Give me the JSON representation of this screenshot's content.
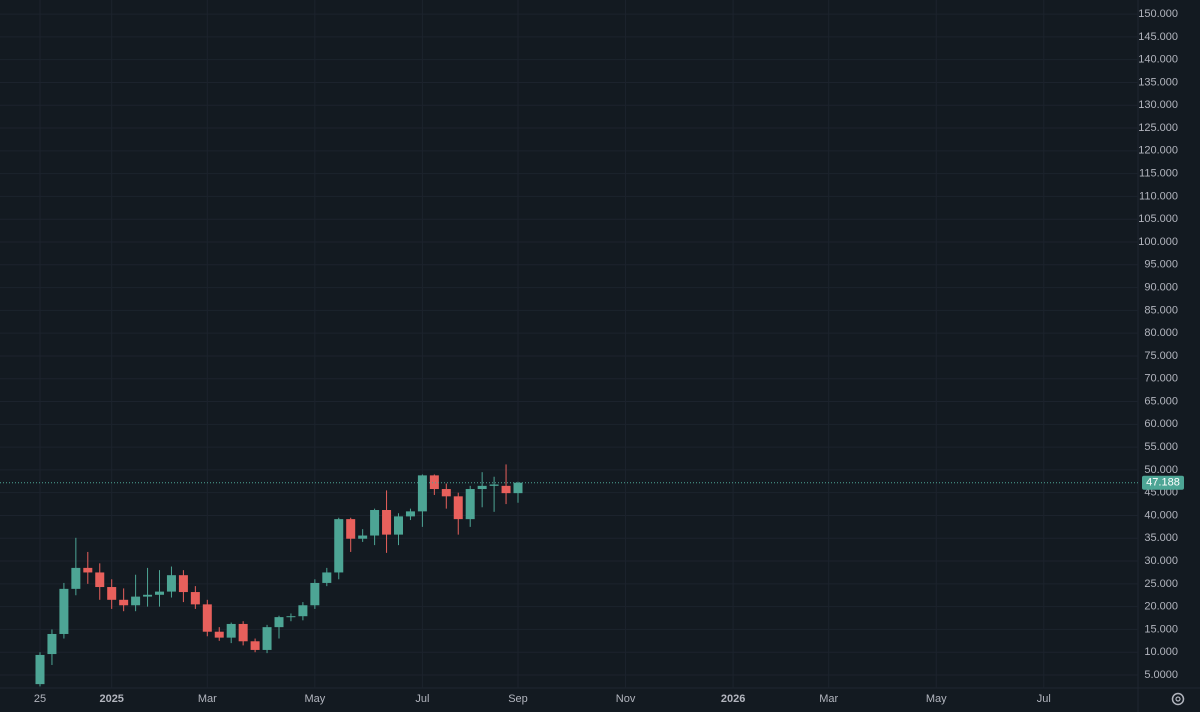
{
  "chart_data": {
    "type": "candlestick",
    "categories": [
      "25",
      null,
      null,
      null,
      null,
      null,
      "2025",
      null,
      null,
      null,
      null,
      null,
      null,
      null,
      "Mar",
      null,
      null,
      null,
      null,
      null,
      null,
      null,
      null,
      "May",
      null,
      null,
      null,
      null,
      null,
      null,
      null,
      null,
      "Jul",
      null,
      null,
      null,
      null,
      null,
      null,
      null,
      "Sep",
      null,
      null,
      null,
      null,
      null,
      null,
      null,
      null,
      "Nov",
      null,
      null,
      null,
      null,
      null,
      null,
      null,
      null,
      "2026",
      null,
      null,
      null,
      null,
      null,
      null,
      null,
      "Mar",
      null,
      null,
      null,
      null,
      null,
      null,
      null,
      null,
      "May",
      null,
      null,
      null,
      null,
      null,
      null,
      null,
      null,
      "Jul",
      null,
      null,
      null,
      null,
      null,
      null
    ],
    "open": [
      3,
      9.6,
      14,
      23.9,
      28.5,
      27.5,
      24.3,
      21.5,
      20.3,
      22.2,
      22.6,
      23.3,
      26.9,
      23.2,
      20.5,
      14.5,
      13.2,
      16.2,
      12.4,
      10.5,
      15.5,
      17.7,
      17.9,
      20.3,
      25.2,
      27.5,
      39.2,
      34.9,
      35.6,
      41.2,
      35.8,
      39.8,
      40.9,
      48.8,
      45.8,
      44.2,
      39.2,
      45.8,
      46.5,
      46.5,
      44.9,
      null,
      null,
      null,
      null,
      null,
      null,
      null,
      null,
      null,
      null,
      null,
      null,
      null,
      null,
      null,
      null,
      null,
      null,
      null,
      null,
      null,
      null,
      null,
      null,
      null,
      null,
      null,
      null,
      null,
      null,
      null,
      null,
      null,
      null,
      null,
      null,
      null,
      null,
      null,
      null,
      null,
      null,
      null,
      null,
      null,
      null,
      null,
      null,
      null,
      null
    ],
    "high": [
      10,
      15,
      25.2,
      35.1,
      32,
      29.5,
      26,
      24,
      27,
      28.5,
      28,
      28.8,
      28,
      24.5,
      21.5,
      15.5,
      16.5,
      16.8,
      13,
      16,
      18,
      18.5,
      21,
      26,
      28.5,
      39.5,
      39.5,
      37,
      41.5,
      45.5,
      40.5,
      41.5,
      49,
      49,
      47,
      45,
      46.5,
      49.5,
      48.5,
      51.2,
      47.4,
      null,
      null,
      null,
      null,
      null,
      null,
      null,
      null,
      null,
      null,
      null,
      null,
      null,
      null,
      null,
      null,
      null,
      null,
      null,
      null,
      null,
      null,
      null,
      null,
      null,
      null,
      null,
      null,
      null,
      null,
      null,
      null,
      null,
      null,
      null,
      null,
      null,
      null,
      null,
      null,
      null,
      null,
      null,
      null,
      null,
      null,
      null,
      null,
      null,
      null
    ],
    "low": [
      2.5,
      7.2,
      13,
      22.5,
      25,
      21.5,
      19.5,
      19,
      19,
      20,
      20,
      22,
      21,
      19.5,
      13.5,
      12.5,
      12,
      11.5,
      10,
      9.8,
      13,
      16.8,
      17,
      19.5,
      24.5,
      26,
      32,
      34.2,
      33.5,
      31.8,
      33.5,
      39,
      37.5,
      44.5,
      41.5,
      35.8,
      37.5,
      41.8,
      40.8,
      42.5,
      42.8,
      null,
      null,
      null,
      null,
      null,
      null,
      null,
      null,
      null,
      null,
      null,
      null,
      null,
      null,
      null,
      null,
      null,
      null,
      null,
      null,
      null,
      null,
      null,
      null,
      null,
      null,
      null,
      null,
      null,
      null,
      null,
      null,
      null,
      null,
      null,
      null,
      null,
      null,
      null,
      null,
      null,
      null,
      null,
      null,
      null,
      null,
      null,
      null,
      null,
      null
    ],
    "close": [
      9.4,
      14,
      23.9,
      28.5,
      27.5,
      24.3,
      21.5,
      20.3,
      22.2,
      22.6,
      23.3,
      26.9,
      23.2,
      20.5,
      14.5,
      13.2,
      16.2,
      12.4,
      10.5,
      15.5,
      17.7,
      17.9,
      20.3,
      25.2,
      27.5,
      39.2,
      34.9,
      35.6,
      41.2,
      35.8,
      39.8,
      40.9,
      48.8,
      45.8,
      44.2,
      39.2,
      45.8,
      46.5,
      46.8,
      44.9,
      47.188,
      null,
      null,
      null,
      null,
      null,
      null,
      null,
      null,
      null,
      null,
      null,
      null,
      null,
      null,
      null,
      null,
      null,
      null,
      null,
      null,
      null,
      null,
      null,
      null,
      null,
      null,
      null,
      null,
      null,
      null,
      null,
      null,
      null,
      null,
      null,
      null,
      null,
      null,
      null,
      null,
      null,
      null,
      null,
      null,
      null,
      null,
      null,
      null,
      null,
      null
    ],
    "ylim": [
      2.15,
      153.09
    ],
    "yticks": [
      {
        "value": 5,
        "label": "5.0000"
      },
      {
        "value": 10,
        "label": "10.000"
      },
      {
        "value": 15,
        "label": "15.000"
      },
      {
        "value": 20,
        "label": "20.000"
      },
      {
        "value": 25,
        "label": "25.000"
      },
      {
        "value": 30,
        "label": "30.000"
      },
      {
        "value": 35,
        "label": "35.000"
      },
      {
        "value": 40,
        "label": "40.000"
      },
      {
        "value": 45,
        "label": "45.000"
      },
      {
        "value": 50,
        "label": "50.000"
      },
      {
        "value": 55,
        "label": "55.000"
      },
      {
        "value": 60,
        "label": "60.000"
      },
      {
        "value": 65,
        "label": "65.000"
      },
      {
        "value": 70,
        "label": "70.000"
      },
      {
        "value": 75,
        "label": "75.000"
      },
      {
        "value": 80,
        "label": "80.000"
      },
      {
        "value": 85,
        "label": "85.000"
      },
      {
        "value": 90,
        "label": "90.000"
      },
      {
        "value": 95,
        "label": "95.000"
      },
      {
        "value": 100,
        "label": "100.000"
      },
      {
        "value": 105,
        "label": "105.000"
      },
      {
        "value": 110,
        "label": "110.000"
      },
      {
        "value": 115,
        "label": "115.000"
      },
      {
        "value": 120,
        "label": "120.000"
      },
      {
        "value": 125,
        "label": "125.000"
      },
      {
        "value": 130,
        "label": "130.000"
      },
      {
        "value": 135,
        "label": "135.000"
      },
      {
        "value": 140,
        "label": "140.000"
      },
      {
        "value": 145,
        "label": "145.000"
      },
      {
        "value": 150,
        "label": "150.000"
      }
    ],
    "grid": true,
    "up_color": "#4da595",
    "down_color": "#e8605c",
    "last_price": 47.188
  }
}
